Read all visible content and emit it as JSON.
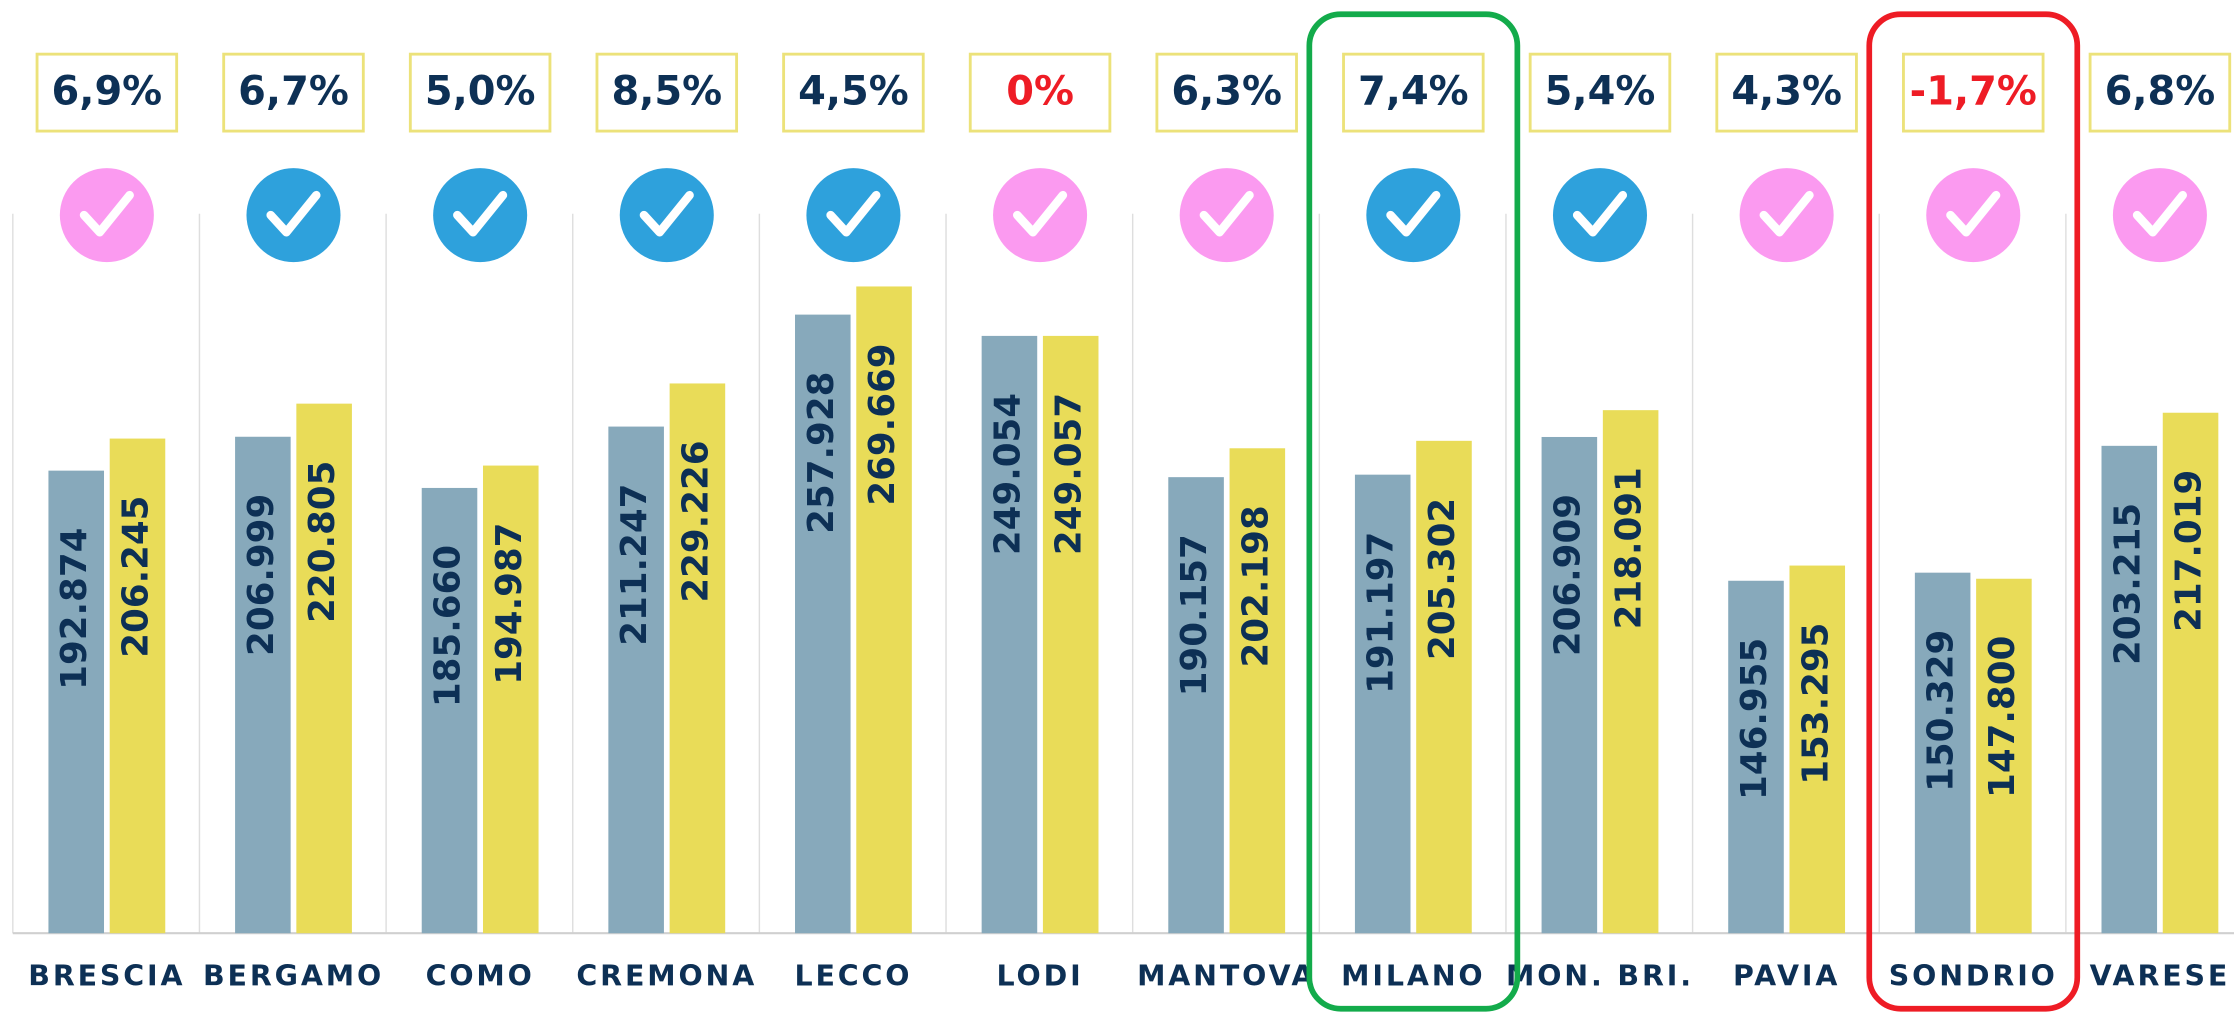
{
  "chart_data": {
    "type": "bar",
    "categories": [
      "BRESCIA",
      "BERGAMO",
      "COMO",
      "CREMONA",
      "LECCO",
      "LODI",
      "MANTOVA",
      "MILANO",
      "MON. BRI.",
      "PAVIA",
      "SONDRIO",
      "VARESE"
    ],
    "series": [
      {
        "color": "#87a9bb",
        "values": [
          192874,
          206999,
          185660,
          211247,
          257928,
          249054,
          190157,
          191197,
          206909,
          146955,
          150329,
          203215
        ],
        "value_labels": [
          "192.874",
          "206.999",
          "185.660",
          "211.247",
          "257.928",
          "249.054",
          "190.157",
          "191.197",
          "206.909",
          "146.955",
          "150.329",
          "203.215"
        ]
      },
      {
        "color": "#e9dc58",
        "values": [
          206245,
          220805,
          194987,
          229226,
          269669,
          249057,
          202198,
          205302,
          218091,
          153295,
          147800,
          217019
        ],
        "value_labels": [
          "206.245",
          "220.805",
          "194.987",
          "229.226",
          "269.669",
          "249.057",
          "202.198",
          "205.302",
          "218.091",
          "153.295",
          "147.800",
          "217.019"
        ]
      }
    ],
    "changes": {
      "values": [
        6.9,
        6.7,
        5.0,
        8.5,
        4.5,
        0,
        6.3,
        7.4,
        5.4,
        4.3,
        -1.7,
        6.8
      ],
      "value_labels": [
        "6,9%",
        "6,7%",
        "5,0%",
        "8,5%",
        "4,5%",
        "0%",
        "6,3%",
        "7,4%",
        "5,4%",
        "4,3%",
        "-1,7%",
        "6,8%"
      ],
      "colors": [
        "#0d3055",
        "#0d3055",
        "#0d3055",
        "#0d3055",
        "#0d3055",
        "#ee1c25",
        "#0d3055",
        "#0d3055",
        "#0d3055",
        "#0d3055",
        "#ee1c25",
        "#0d3055"
      ]
    },
    "icon_colors": [
      "#fb9af0",
      "#2ea1dc",
      "#2ea1dc",
      "#2ea1dc",
      "#2ea1dc",
      "#fb9af0",
      "#fb9af0",
      "#2ea1dc",
      "#2ea1dc",
      "#fb9af0",
      "#fb9af0",
      "#fb9af0"
    ],
    "highlights": [
      {
        "index": 7,
        "color": "#13ab4b"
      },
      {
        "index": 10,
        "color": "#ee1c25"
      }
    ],
    "ylim": [
      0,
      300000
    ]
  }
}
